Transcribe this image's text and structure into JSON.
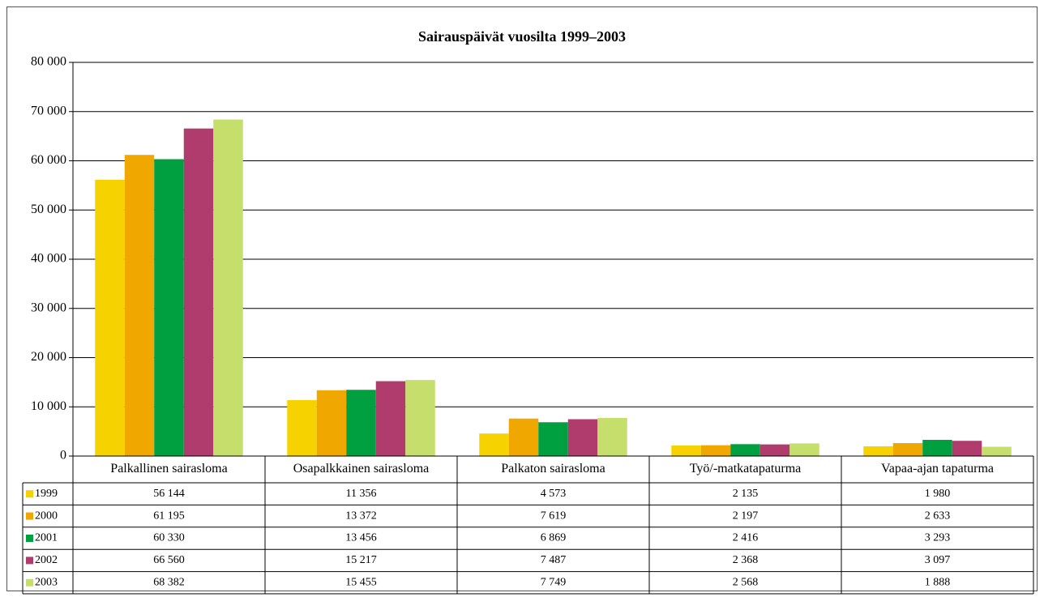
{
  "chart_data": {
    "type": "bar",
    "title": "Sairauspäivät vuosilta 1999–2003",
    "categories": [
      "Palkallinen sairasloma",
      "Osapalkkainen sairasloma",
      "Palkaton sairasloma",
      "Työ/-matkatapaturma",
      "Vapaa-ajan tapaturma"
    ],
    "series": [
      {
        "name": "1999",
        "color": "#f5d200",
        "values": [
          56144,
          11356,
          4573,
          2135,
          1980
        ],
        "value_labels": [
          "56 144",
          "11 356",
          "4 573",
          "2 135",
          "1 980"
        ]
      },
      {
        "name": "2000",
        "color": "#f0a800",
        "values": [
          61195,
          13372,
          7619,
          2197,
          2633
        ],
        "value_labels": [
          "61 195",
          "13 372",
          "7 619",
          "2 197",
          "2 633"
        ]
      },
      {
        "name": "2001",
        "color": "#00a040",
        "values": [
          60330,
          13456,
          6869,
          2416,
          3293
        ],
        "value_labels": [
          "60 330",
          "13 456",
          "6 869",
          "2 416",
          "3 293"
        ]
      },
      {
        "name": "2002",
        "color": "#b03c6e",
        "values": [
          66560,
          15217,
          7487,
          2368,
          3097
        ],
        "value_labels": [
          "66 560",
          "15 217",
          "7 487",
          "2 368",
          "3 097"
        ]
      },
      {
        "name": "2003",
        "color": "#c5de6c",
        "values": [
          68382,
          15455,
          7749,
          2568,
          1888
        ],
        "value_labels": [
          "68 382",
          "15 455",
          "7 749",
          "2 568",
          "1 888"
        ]
      }
    ],
    "ylim": [
      0,
      80000
    ],
    "yticks": [
      0,
      {
        "value": 10000,
        "label": "10 000"
      },
      {
        "value": 20000,
        "label": "20 000"
      },
      {
        "value": 30000,
        "label": "30 000"
      },
      {
        "value": 40000,
        "label": "40 000"
      },
      {
        "value": 50000,
        "label": "50 000"
      },
      {
        "value": 60000,
        "label": "60 000"
      },
      {
        "value": 70000,
        "label": "70 000"
      },
      {
        "value": 80000,
        "label": "80 000"
      }
    ],
    "grid": true
  }
}
